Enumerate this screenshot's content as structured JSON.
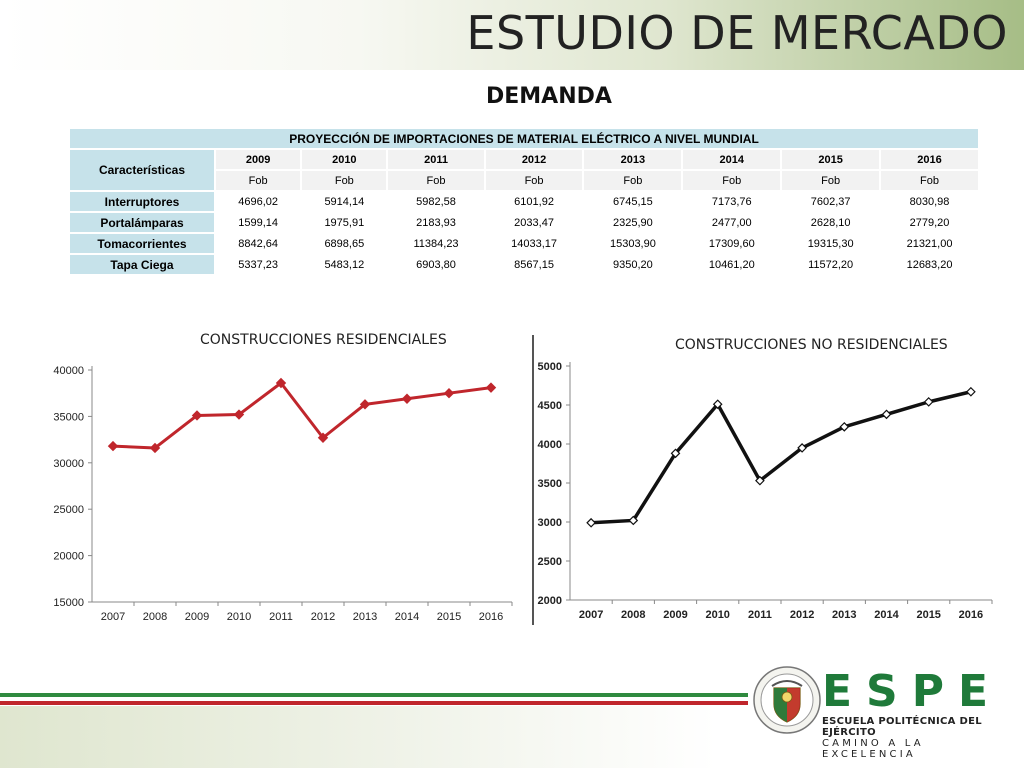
{
  "header": {
    "title": "ESTUDIO DE MERCADO",
    "subtitle": "DEMANDA"
  },
  "table": {
    "caption": "PROYECCIÓN DE IMPORTACIONES DE MATERIAL ELÉCTRICO A NIVEL MUNDIAL",
    "first_col_header": "Características",
    "years": [
      "2009",
      "2010",
      "2011",
      "2012",
      "2013",
      "2014",
      "2015",
      "2016"
    ],
    "unit": "Fob",
    "rows": [
      {
        "label": "Interruptores",
        "values": [
          "4696,02",
          "5914,14",
          "5982,58",
          "6101,92",
          "6745,15",
          "7173,76",
          "7602,37",
          "8030,98"
        ]
      },
      {
        "label": "Portalámparas",
        "values": [
          "1599,14",
          "1975,91",
          "2183,93",
          "2033,47",
          "2325,90",
          "2477,00",
          "2628,10",
          "2779,20"
        ]
      },
      {
        "label": "Tomacorrientes",
        "values": [
          "8842,64",
          "6898,65",
          "11384,23",
          "14033,17",
          "15303,90",
          "17309,60",
          "19315,30",
          "21321,00"
        ]
      },
      {
        "label": "Tapa Ciega",
        "values": [
          "5337,23",
          "5483,12",
          "6903,80",
          "8567,15",
          "9350,20",
          "10461,20",
          "11572,20",
          "12683,20"
        ]
      }
    ]
  },
  "chart_data": [
    {
      "type": "line",
      "title": "CONSTRUCCIONES  RESIDENCIALES",
      "x": [
        "2007",
        "2008",
        "2009",
        "2010",
        "2011",
        "2012",
        "2013",
        "2014",
        "2015",
        "2016"
      ],
      "series": [
        {
          "values": [
            31800,
            31600,
            35100,
            35200,
            38600,
            32700,
            36300,
            36900,
            37500,
            38100
          ]
        }
      ],
      "ylim": [
        15000,
        40000
      ],
      "yticks": [
        "15000",
        "20000",
        "25000",
        "30000",
        "35000",
        "40000"
      ],
      "color": "#c0262c",
      "marker": "diamond",
      "grid": false
    },
    {
      "type": "line",
      "title": "CONSTRUCCIONES  NO RESIDENCIALES",
      "x": [
        "2007",
        "2008",
        "2009",
        "2010",
        "2011",
        "2012",
        "2013",
        "2014",
        "2015",
        "2016"
      ],
      "series": [
        {
          "values": [
            2990,
            3020,
            3880,
            4510,
            3530,
            3950,
            4220,
            4380,
            4540,
            4670
          ]
        }
      ],
      "ylim": [
        2000,
        5000
      ],
      "yticks": [
        "2000",
        "2500",
        "3000",
        "3500",
        "4000",
        "4500",
        "5000"
      ],
      "color": "#111111",
      "marker": "diamond-open",
      "grid": false
    }
  ],
  "footer": {
    "brand": "ESPE",
    "line1": "ESCUELA POLITÉCNICA DEL EJÉRCITO",
    "line2": "CAMINO A LA EXCELENCIA"
  },
  "colors": {
    "accent_green": "#1f7a3a",
    "stripe_red": "#c0262c",
    "table_header": "#c6e2ea"
  }
}
